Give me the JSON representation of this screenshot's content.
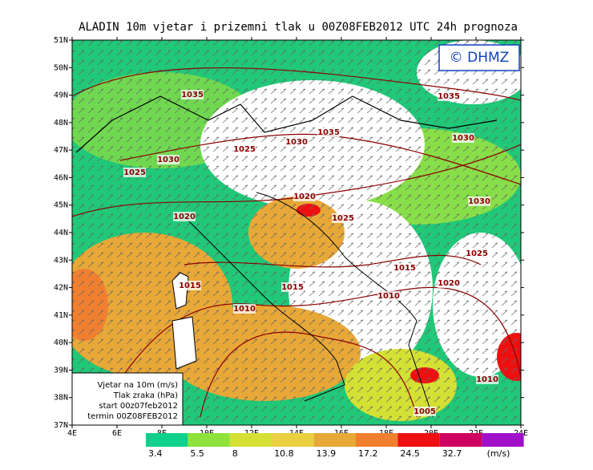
{
  "title": "ALADIN 10m vjetar i prizemni tlak u 00Z08FEB2012 UTC 24h prognoza",
  "logo": "© DHMZ",
  "lat_ticks": [
    {
      "value": 51,
      "label": "51N"
    },
    {
      "value": 50,
      "label": "50N"
    },
    {
      "value": 49,
      "label": "49N"
    },
    {
      "value": 48,
      "label": "48N"
    },
    {
      "value": 47,
      "label": "47N"
    },
    {
      "value": 46,
      "label": "46N"
    },
    {
      "value": 45,
      "label": "45N"
    },
    {
      "value": 44,
      "label": "44N"
    },
    {
      "value": 43,
      "label": "43N"
    },
    {
      "value": 42,
      "label": "42N"
    },
    {
      "value": 41,
      "label": "41N"
    },
    {
      "value": 40,
      "label": "40N"
    },
    {
      "value": 39,
      "label": "39N"
    },
    {
      "value": 38,
      "label": "38N"
    },
    {
      "value": 37,
      "label": "37N"
    }
  ],
  "lon_ticks": [
    {
      "value": 4,
      "label": "4E"
    },
    {
      "value": 6,
      "label": "6E"
    },
    {
      "value": 8,
      "label": "8E"
    },
    {
      "value": 10,
      "label": "10E"
    },
    {
      "value": 12,
      "label": "12E"
    },
    {
      "value": 14,
      "label": "14E"
    },
    {
      "value": 16,
      "label": "16E"
    },
    {
      "value": 18,
      "label": "18E"
    },
    {
      "value": 20,
      "label": "20E"
    },
    {
      "value": 22,
      "label": "22E"
    },
    {
      "value": 24,
      "label": "24E"
    }
  ],
  "isobar_labels": [
    1035,
    1035,
    1035,
    1030,
    1030,
    1025,
    1030,
    1025,
    1020,
    1030,
    1025,
    1020,
    1025,
    1015,
    1020,
    1015,
    1015,
    1010,
    1010,
    1010,
    1005
  ],
  "legend": [
    "Vjetar na 10m (m/s)",
    "Tlak zraka (hPa)",
    "start 00z07feb2012",
    "termin 00Z08FEB2012"
  ],
  "colorbar": {
    "colors": [
      "#10d08c",
      "#8ee23c",
      "#d4e034",
      "#e8d040",
      "#e8a838",
      "#f08030",
      "#ee1010",
      "#d00060",
      "#a010c8"
    ],
    "values": [
      3.4,
      5.5,
      8,
      10.8,
      13.9,
      17.2,
      24.5,
      32.7
    ],
    "unit": "(m/s)"
  }
}
